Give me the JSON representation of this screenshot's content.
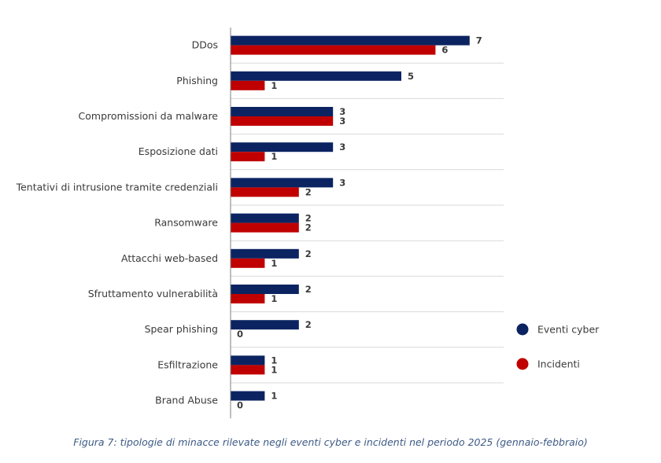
{
  "chart_data": {
    "type": "bar",
    "orientation": "horizontal",
    "categories": [
      "DDos",
      "Phishing",
      "Compromissioni da malware",
      "Esposizione dati",
      "Tentativi di intrusione tramite credenziali",
      "Ransomware",
      "Attacchi web-based",
      "Sfruttamento vulnerabilità",
      "Spear phishing",
      "Esfiltrazione",
      "Brand Abuse"
    ],
    "series": [
      {
        "name": "Eventi cyber",
        "color": "#0b2361",
        "values": [
          7,
          5,
          3,
          3,
          3,
          2,
          2,
          2,
          2,
          1,
          1
        ]
      },
      {
        "name": "Incidenti",
        "color": "#c00000",
        "values": [
          6,
          1,
          3,
          1,
          2,
          2,
          1,
          1,
          0,
          1,
          0
        ]
      }
    ],
    "xlim": [
      0,
      8
    ],
    "grid": "horizontal separators",
    "legend_position": "right"
  },
  "caption": "Figura 7: tipologie di minacce rilevate negli eventi cyber e incidenti nel periodo 2025 (gennaio-febbraio)"
}
